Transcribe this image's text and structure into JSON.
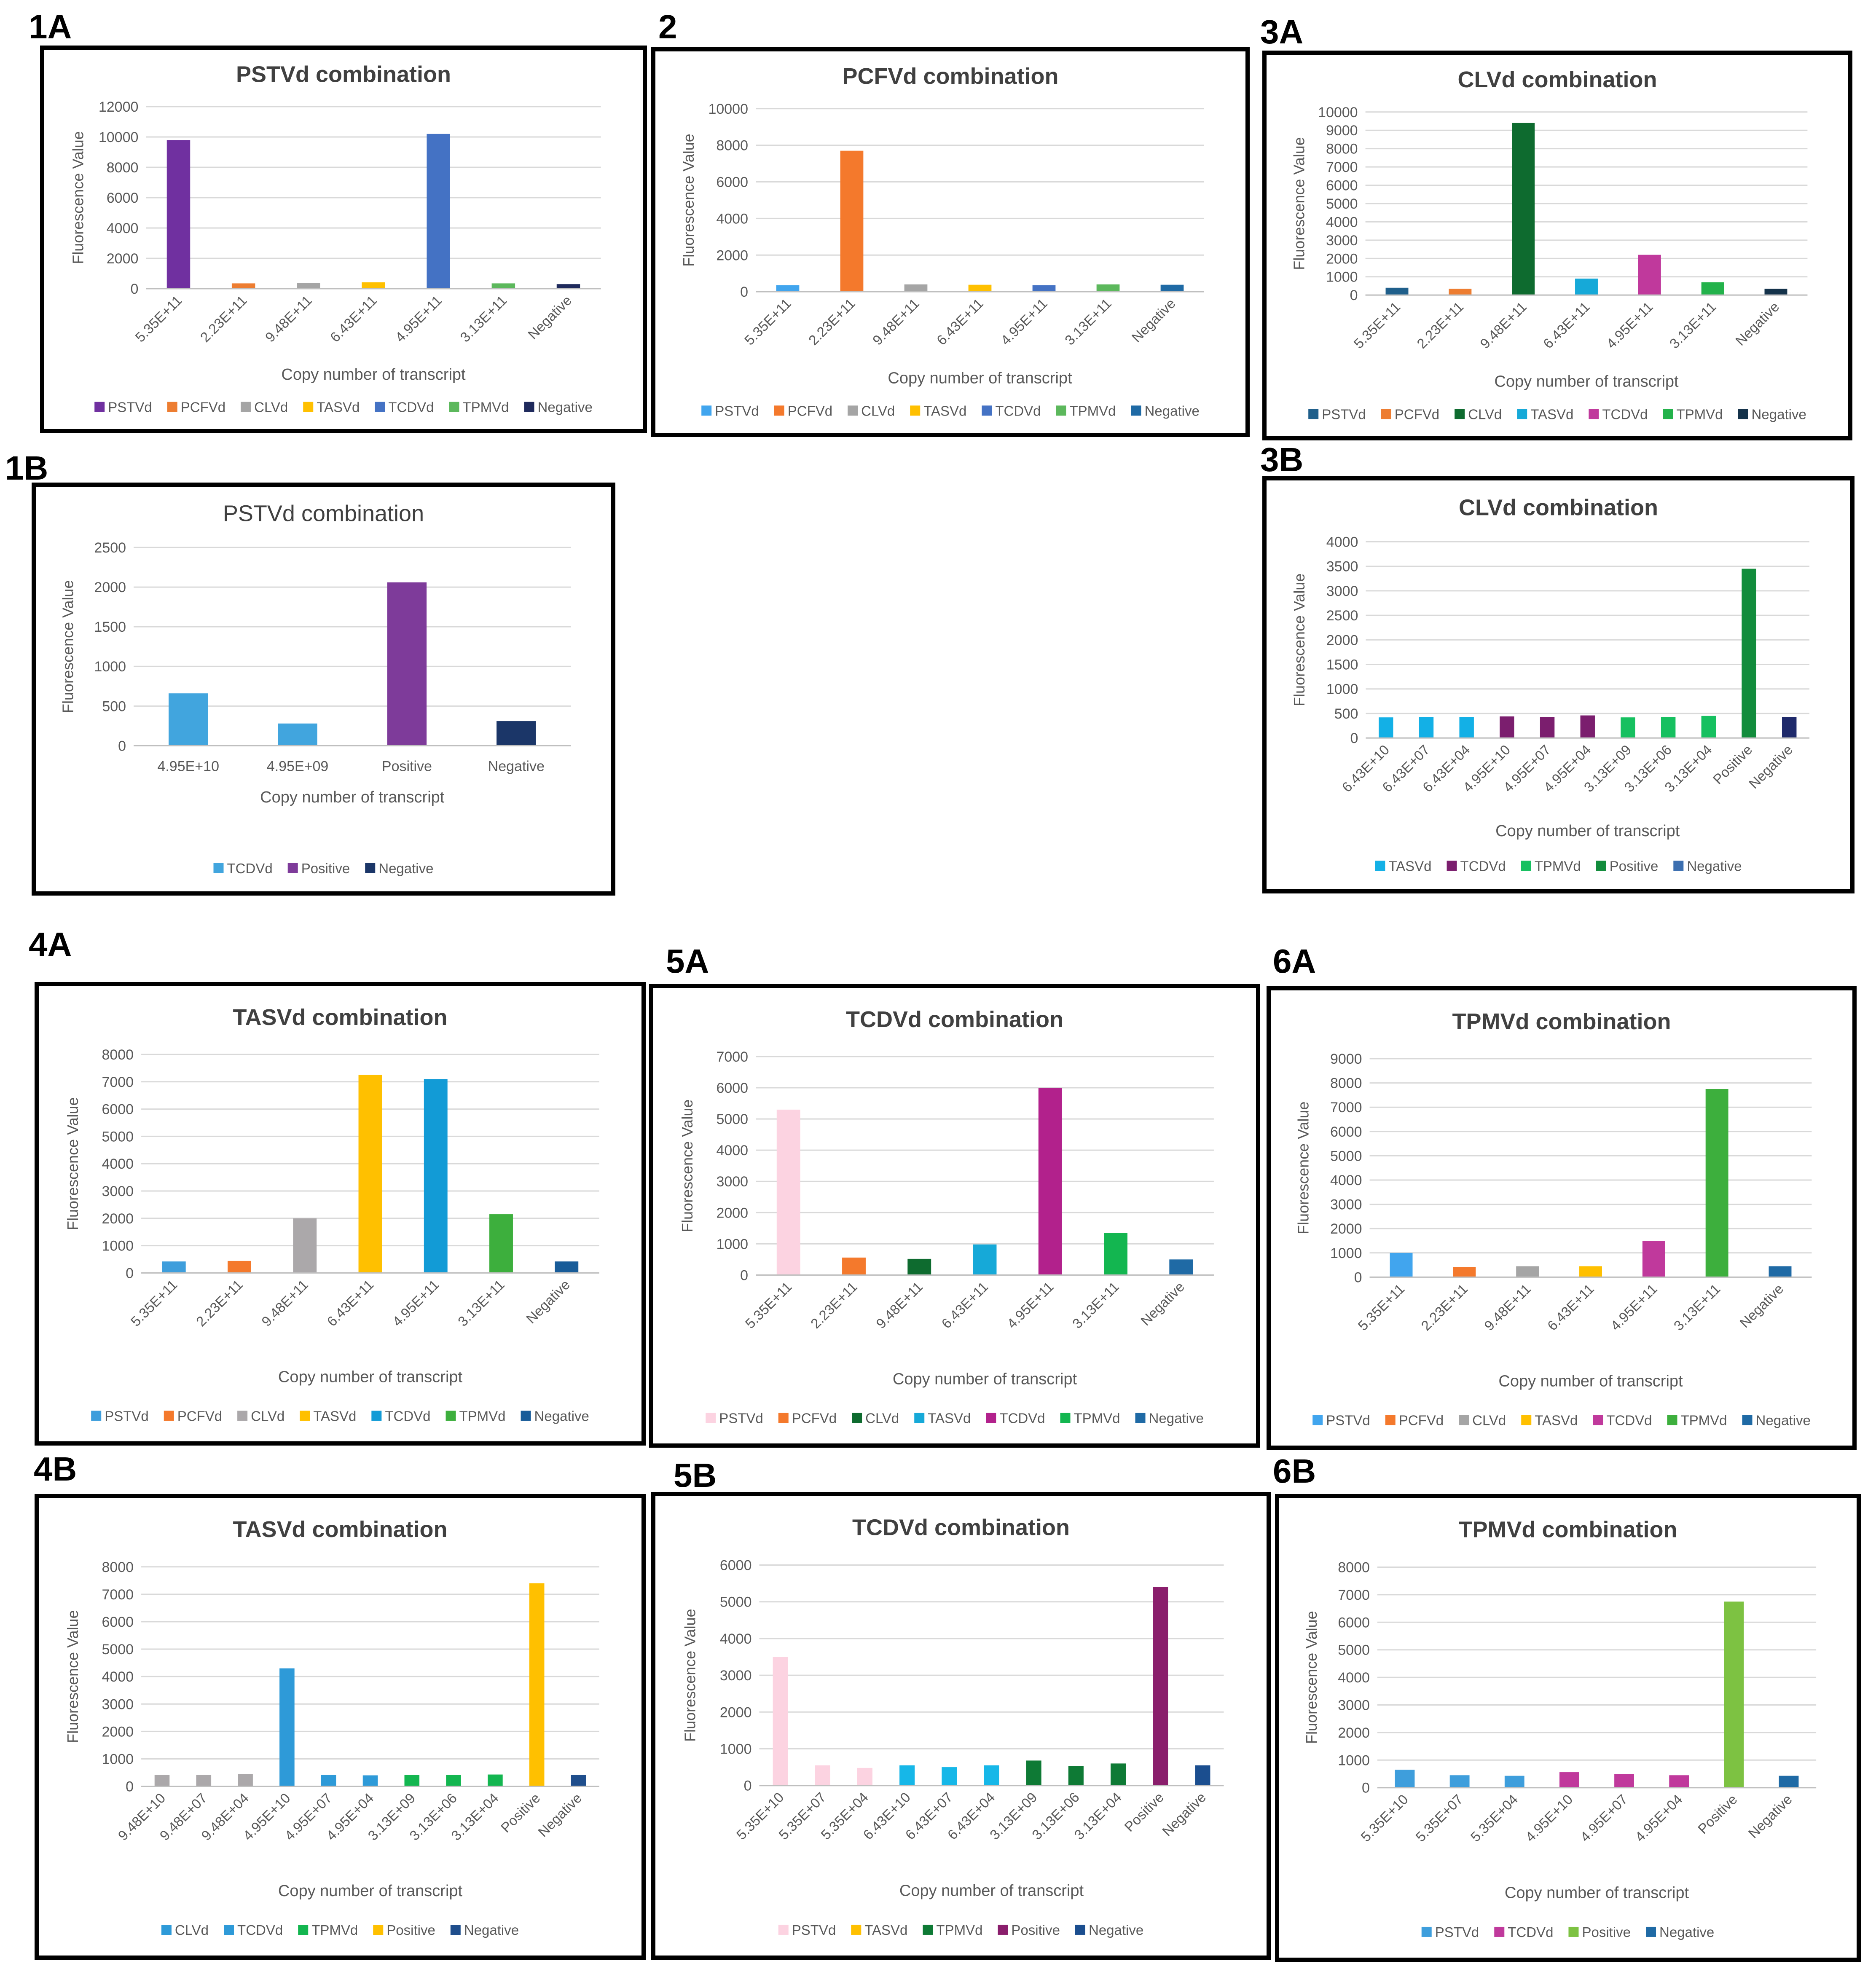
{
  "figure": {
    "source_size": "4451x4691"
  },
  "chart_data": [
    {
      "id": "1A",
      "panel_label": "1A",
      "type": "bar",
      "title": "PSTVd combination",
      "title_bold": true,
      "xlabel": "Copy number of transcript",
      "ylabel": "Fluorescence Value",
      "ylim": [
        0,
        12000
      ],
      "yticks": [
        0,
        2000,
        4000,
        6000,
        8000,
        10000,
        12000
      ],
      "rotate": true,
      "categories": [
        "5.35E+11",
        "2.23E+11",
        "9.48E+11",
        "6.43E+11",
        "4.95E+11",
        "3.13E+11",
        "Negative"
      ],
      "values": [
        9800,
        350,
        380,
        420,
        10200,
        350,
        300
      ],
      "bar_colors": [
        "#7030A0",
        "#ED7D31",
        "#A5A5A5",
        "#FFC000",
        "#4472C4",
        "#5CB85C",
        "#1F2A5C"
      ],
      "legend": [
        {
          "label": "PSTVd",
          "color": "#7030A0"
        },
        {
          "label": "PCFVd",
          "color": "#ED7D31"
        },
        {
          "label": "CLVd",
          "color": "#A5A5A5"
        },
        {
          "label": "TASVd",
          "color": "#FFC000"
        },
        {
          "label": "TCDVd",
          "color": "#4472C4"
        },
        {
          "label": "TPMVd",
          "color": "#5CB85C"
        },
        {
          "label": "Negative",
          "color": "#1F2A5C"
        }
      ]
    },
    {
      "id": "2",
      "panel_label": "2",
      "type": "bar",
      "title": "PCFVd combination",
      "title_bold": true,
      "xlabel": "Copy number of transcript",
      "ylabel": "Fluorescence Value",
      "ylim": [
        0,
        10000
      ],
      "yticks": [
        0,
        2000,
        4000,
        6000,
        8000,
        10000
      ],
      "rotate": true,
      "categories": [
        "5.35E+11",
        "2.23E+11",
        "9.48E+11",
        "6.43E+11",
        "4.95E+11",
        "3.13E+11",
        "Negative"
      ],
      "values": [
        350,
        7700,
        400,
        380,
        350,
        400,
        380
      ],
      "bar_colors": [
        "#41A5EE",
        "#F4792C",
        "#A5A5A5",
        "#FFC000",
        "#4472C4",
        "#5CB85C",
        "#1F6AA5"
      ],
      "legend": [
        {
          "label": "PSTVd",
          "color": "#41A5EE"
        },
        {
          "label": "PCFVd",
          "color": "#F4792C"
        },
        {
          "label": "CLVd",
          "color": "#A5A5A5"
        },
        {
          "label": "TASVd",
          "color": "#FFC000"
        },
        {
          "label": "TCDVd",
          "color": "#4472C4"
        },
        {
          "label": "TPMVd",
          "color": "#5CB85C"
        },
        {
          "label": "Negative",
          "color": "#1F6AA5"
        }
      ]
    },
    {
      "id": "3A",
      "panel_label": "3A",
      "type": "bar",
      "title": "CLVd combination",
      "title_bold": true,
      "xlabel": "Copy number of transcript",
      "ylabel": "Fluorescence Value",
      "ylim": [
        0,
        10000
      ],
      "yticks": [
        0,
        1000,
        2000,
        3000,
        4000,
        5000,
        6000,
        7000,
        8000,
        9000,
        10000
      ],
      "rotate": true,
      "categories": [
        "5.35E+11",
        "2.23E+11",
        "9.48E+11",
        "6.43E+11",
        "4.95E+11",
        "3.13E+11",
        "Negative"
      ],
      "values": [
        400,
        350,
        9400,
        900,
        2200,
        700,
        350
      ],
      "bar_colors": [
        "#1F5F8B",
        "#ED7D31",
        "#0E6B2F",
        "#16A9D8",
        "#C0399C",
        "#23B24B",
        "#14324A"
      ],
      "legend": [
        {
          "label": "PSTVd",
          "color": "#1F5F8B"
        },
        {
          "label": "PCFVd",
          "color": "#ED7D31"
        },
        {
          "label": "CLVd",
          "color": "#0E6B2F"
        },
        {
          "label": "TASVd",
          "color": "#16A9D8"
        },
        {
          "label": "TCDVd",
          "color": "#C0399C"
        },
        {
          "label": "TPMVd",
          "color": "#23B24B"
        },
        {
          "label": "Negative",
          "color": "#14324A"
        }
      ]
    },
    {
      "id": "1B",
      "panel_label": "1B",
      "type": "bar",
      "title": "PSTVd combination",
      "title_bold": false,
      "xlabel": "Copy number of transcript",
      "ylabel": "Fluorescence Value",
      "ylim": [
        0,
        2500
      ],
      "yticks": [
        0,
        500,
        1000,
        1500,
        2000,
        2500
      ],
      "rotate": false,
      "categories": [
        "4.95E+10",
        "4.95E+09",
        "Positive",
        "Negative"
      ],
      "values": [
        660,
        280,
        2060,
        310
      ],
      "bar_colors": [
        "#41A5DE",
        "#41A5DE",
        "#7E3B9A",
        "#1B3668"
      ],
      "legend": [
        {
          "label": "TCDVd",
          "color": "#41A5DE"
        },
        {
          "label": "Positive",
          "color": "#7E3B9A"
        },
        {
          "label": "Negative",
          "color": "#1B3668"
        }
      ]
    },
    {
      "id": "3B",
      "panel_label": "3B",
      "type": "bar",
      "title": "CLVd combination",
      "title_bold": true,
      "xlabel": "Copy number of transcript",
      "ylabel": "Fluorescence Value",
      "ylim": [
        0,
        4000
      ],
      "yticks": [
        0,
        500,
        1000,
        1500,
        2000,
        2500,
        3000,
        3500,
        4000
      ],
      "rotate": true,
      "categories": [
        "6.43E+10",
        "6.43E+07",
        "6.43E+04",
        "4.95E+10",
        "4.95E+07",
        "4.95E+04",
        "3.13E+09",
        "3.13E+06",
        "3.13E+04",
        "Positive",
        "Negative"
      ],
      "values": [
        420,
        430,
        430,
        440,
        430,
        460,
        420,
        430,
        450,
        3450,
        430
      ],
      "bar_colors": [
        "#13B0E6",
        "#13B0E6",
        "#13B0E6",
        "#7B1E6E",
        "#7B1E6E",
        "#7B1E6E",
        "#16C060",
        "#16C060",
        "#16C060",
        "#128C3C",
        "#1F2A6B"
      ],
      "legend": [
        {
          "label": "TASVd",
          "color": "#13B0E6"
        },
        {
          "label": "TCDVd",
          "color": "#7B1E6E"
        },
        {
          "label": "TPMVd",
          "color": "#16C060"
        },
        {
          "label": "Positive",
          "color": "#128C3C"
        },
        {
          "label": "Negative",
          "color": "#3C6FB0"
        }
      ]
    },
    {
      "id": "4A",
      "panel_label": "4A",
      "type": "bar",
      "title": "TASVd combination",
      "title_bold": true,
      "xlabel": "Copy number of transcript",
      "ylabel": "Fluorescence Value",
      "ylim": [
        0,
        8000
      ],
      "yticks": [
        0,
        1000,
        2000,
        3000,
        4000,
        5000,
        6000,
        7000,
        8000
      ],
      "rotate": true,
      "categories": [
        "5.35E+11",
        "2.23E+11",
        "9.48E+11",
        "6.43E+11",
        "4.95E+11",
        "3.13E+11",
        "Negative"
      ],
      "values": [
        420,
        440,
        2000,
        7250,
        7100,
        2150,
        420
      ],
      "bar_colors": [
        "#3E9EDC",
        "#F4792C",
        "#ABA8AA",
        "#FFC000",
        "#129BD6",
        "#3DAF3D",
        "#185C99"
      ],
      "legend": [
        {
          "label": "PSTVd",
          "color": "#3E9EDC"
        },
        {
          "label": "PCFVd",
          "color": "#F4792C"
        },
        {
          "label": "CLVd",
          "color": "#ABA8AA"
        },
        {
          "label": "TASVd",
          "color": "#FFC000"
        },
        {
          "label": "TCDVd",
          "color": "#129BD6"
        },
        {
          "label": "TPMVd",
          "color": "#3DAF3D"
        },
        {
          "label": "Negative",
          "color": "#185C99"
        }
      ]
    },
    {
      "id": "5A",
      "panel_label": "5A",
      "type": "bar",
      "title": "TCDVd combination",
      "title_bold": true,
      "xlabel": "Copy number of transcript",
      "ylabel": "Fluorescence Value",
      "ylim": [
        0,
        7000
      ],
      "yticks": [
        0,
        1000,
        2000,
        3000,
        4000,
        5000,
        6000,
        7000
      ],
      "rotate": true,
      "categories": [
        "5.35E+11",
        "2.23E+11",
        "9.48E+11",
        "6.43E+11",
        "4.95E+11",
        "3.13E+11",
        "Negative"
      ],
      "values": [
        5300,
        560,
        520,
        980,
        6000,
        1350,
        500
      ],
      "bar_colors": [
        "#FCD3E1",
        "#F4792C",
        "#0E6B2F",
        "#16A9D8",
        "#B2218C",
        "#13B650",
        "#1F6AA5"
      ],
      "legend": [
        {
          "label": "PSTVd",
          "color": "#FCD3E1"
        },
        {
          "label": "PCFVd",
          "color": "#F4792C"
        },
        {
          "label": "CLVd",
          "color": "#0E6B2F"
        },
        {
          "label": "TASVd",
          "color": "#16A9D8"
        },
        {
          "label": "TCDVd",
          "color": "#B2218C"
        },
        {
          "label": "TPMVd",
          "color": "#13B650"
        },
        {
          "label": "Negative",
          "color": "#1F6AA5"
        }
      ]
    },
    {
      "id": "6A",
      "panel_label": "6A",
      "type": "bar",
      "title": "TPMVd combination",
      "title_bold": true,
      "xlabel": "Copy number of transcript",
      "ylabel": "Fluorescence Value",
      "ylim": [
        0,
        9000
      ],
      "yticks": [
        0,
        1000,
        2000,
        3000,
        4000,
        5000,
        6000,
        7000,
        8000,
        9000
      ],
      "rotate": true,
      "categories": [
        "5.35E+11",
        "2.23E+11",
        "9.48E+11",
        "6.43E+11",
        "4.95E+11",
        "3.13E+11",
        "Negative"
      ],
      "values": [
        1000,
        420,
        450,
        450,
        1500,
        7750,
        450
      ],
      "bar_colors": [
        "#41A5EE",
        "#F4792C",
        "#A5A5A5",
        "#FFC000",
        "#C0399C",
        "#3DAF3D",
        "#1F6AA5"
      ],
      "legend": [
        {
          "label": "PSTVd",
          "color": "#41A5EE"
        },
        {
          "label": "PCFVd",
          "color": "#F4792C"
        },
        {
          "label": "CLVd",
          "color": "#A5A5A5"
        },
        {
          "label": "TASVd",
          "color": "#FFC000"
        },
        {
          "label": "TCDVd",
          "color": "#C0399C"
        },
        {
          "label": "TPMVd",
          "color": "#3DAF3D"
        },
        {
          "label": "Negative",
          "color": "#1F6AA5"
        }
      ]
    },
    {
      "id": "4B",
      "panel_label": "4B",
      "type": "bar",
      "title": "TASVd combination",
      "title_bold": true,
      "xlabel": "Copy number of transcript",
      "ylabel": "Fluorescence Value",
      "ylim": [
        0,
        8000
      ],
      "yticks": [
        0,
        1000,
        2000,
        3000,
        4000,
        5000,
        6000,
        7000,
        8000
      ],
      "rotate": true,
      "categories": [
        "9.48E+10",
        "9.48E+07",
        "9.48E+04",
        "4.95E+10",
        "4.95E+07",
        "4.95E+04",
        "3.13E+09",
        "3.13E+06",
        "3.13E+04",
        "Positive",
        "Negative"
      ],
      "values": [
        420,
        420,
        440,
        4300,
        420,
        400,
        420,
        420,
        430,
        7400,
        420
      ],
      "bar_colors": [
        "#ABA8AA",
        "#ABA8AA",
        "#ABA8AA",
        "#2E9AD8",
        "#2E9AD8",
        "#2E9AD8",
        "#13B650",
        "#13B650",
        "#13B650",
        "#FFC000",
        "#1F4E8C"
      ],
      "legend": [
        {
          "label": "CLVd",
          "color": "#2E9AD8"
        },
        {
          "label": "TCDVd",
          "color": "#2E9AD8"
        },
        {
          "label": "TPMVd",
          "color": "#13B650"
        },
        {
          "label": "Positive",
          "color": "#FFC000"
        },
        {
          "label": "Negative",
          "color": "#1F4E8C"
        }
      ]
    },
    {
      "id": "5B",
      "panel_label": "5B",
      "type": "bar",
      "title": "TCDVd combination",
      "title_bold": true,
      "xlabel": "Copy number of transcript",
      "ylabel": "Fluorescence Value",
      "ylim": [
        0,
        6000
      ],
      "yticks": [
        0,
        1000,
        2000,
        3000,
        4000,
        5000,
        6000
      ],
      "rotate": true,
      "categories": [
        "5.35E+10",
        "5.35E+07",
        "5.35E+04",
        "6.43E+10",
        "6.43E+07",
        "6.43E+04",
        "3.13E+09",
        "3.13E+06",
        "3.13E+04",
        "Positive",
        "Negative"
      ],
      "values": [
        3500,
        550,
        480,
        550,
        500,
        550,
        680,
        530,
        600,
        5400,
        550
      ],
      "bar_colors": [
        "#FCD3E1",
        "#FCD3E1",
        "#FCD3E1",
        "#16B7E8",
        "#16B7E8",
        "#16B7E8",
        "#0E7A35",
        "#0E7A35",
        "#0E7A35",
        "#8A1E6C",
        "#1B4E8F"
      ],
      "legend": [
        {
          "label": "PSTVd",
          "color": "#FCD3E1"
        },
        {
          "label": "TASVd",
          "color": "#FFC000"
        },
        {
          "label": "TPMVd",
          "color": "#0E7A35"
        },
        {
          "label": "Positive",
          "color": "#8A1E6C"
        },
        {
          "label": "Negative",
          "color": "#1B4E8F"
        }
      ]
    },
    {
      "id": "6B",
      "panel_label": "6B",
      "type": "bar",
      "title": "TPMVd combination",
      "title_bold": true,
      "xlabel": "Copy number of transcript",
      "ylabel": "Fluorescence Value",
      "ylim": [
        0,
        8000
      ],
      "yticks": [
        0,
        1000,
        2000,
        3000,
        4000,
        5000,
        6000,
        7000,
        8000
      ],
      "rotate": true,
      "categories": [
        "5.35E+10",
        "5.35E+07",
        "5.35E+04",
        "4.95E+10",
        "4.95E+07",
        "4.95E+04",
        "Positive",
        "Negative"
      ],
      "values": [
        650,
        450,
        430,
        560,
        500,
        450,
        6750,
        430
      ],
      "bar_colors": [
        "#3E9EDC",
        "#3E9EDC",
        "#3E9EDC",
        "#C0399C",
        "#C0399C",
        "#C0399C",
        "#7DC242",
        "#1F6AA5"
      ],
      "legend": [
        {
          "label": "PSTVd",
          "color": "#3E9EDC"
        },
        {
          "label": "TCDVd",
          "color": "#C0399C"
        },
        {
          "label": "Positive",
          "color": "#7DC242"
        },
        {
          "label": "Negative",
          "color": "#1F6AA5"
        }
      ]
    }
  ]
}
